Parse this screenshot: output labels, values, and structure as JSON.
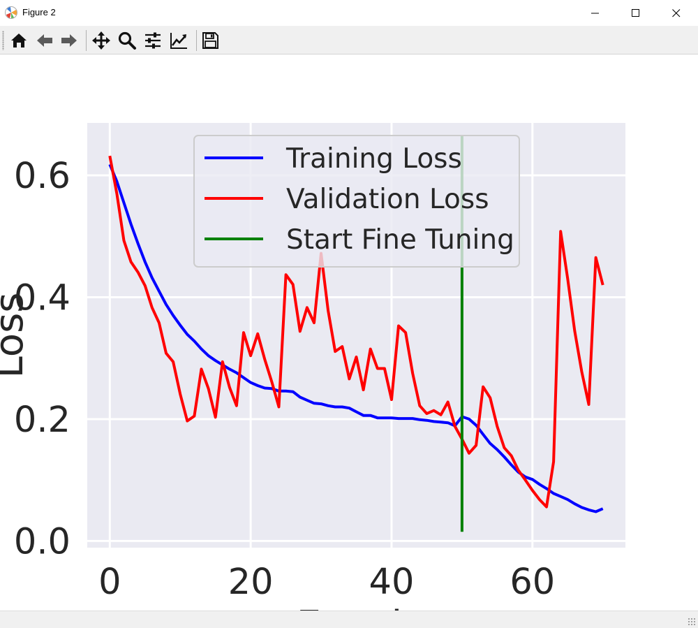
{
  "window": {
    "title": "Figure 2",
    "icons": [
      "app-icon",
      "minimize-icon",
      "maximize-icon",
      "close-icon"
    ]
  },
  "toolbar": {
    "buttons": [
      {
        "name": "home-button",
        "icon": "home-icon"
      },
      {
        "name": "back-button",
        "icon": "arrow-left-icon"
      },
      {
        "name": "forward-button",
        "icon": "arrow-right-icon"
      },
      {
        "name": "pan-button",
        "icon": "move-icon"
      },
      {
        "name": "zoom-button",
        "icon": "magnifier-icon"
      },
      {
        "name": "subplots-button",
        "icon": "sliders-icon"
      },
      {
        "name": "edit-axes-button",
        "icon": "line-chart-icon"
      },
      {
        "name": "save-button",
        "icon": "floppy-disk-icon"
      }
    ]
  },
  "colors": {
    "plot_background": "#EAEAF2",
    "grid": "#FFFFFF",
    "training": "#0000FF",
    "validation": "#FF0000",
    "fine_tune": "#008000",
    "text": "#262626"
  },
  "chart_data": {
    "type": "line",
    "xlabel": "Epoch",
    "ylabel": "Loss",
    "xlim": [
      -3.2,
      73.2
    ],
    "ylim": [
      -0.011,
      0.686
    ],
    "xticks": [
      0,
      20,
      40,
      60
    ],
    "yticks": [
      0.0,
      0.2,
      0.4,
      0.6
    ],
    "xtick_labels": [
      "0",
      "20",
      "40",
      "60"
    ],
    "ytick_labels": [
      "0.0",
      "0.2",
      "0.4",
      "0.6"
    ],
    "grid": true,
    "legend_position": "top-center",
    "series": [
      {
        "name": "Training Loss",
        "color": "#0000FF",
        "x": [
          0,
          1,
          2,
          3,
          4,
          5,
          6,
          7,
          8,
          9,
          10,
          11,
          12,
          13,
          14,
          15,
          16,
          17,
          18,
          19,
          20,
          21,
          22,
          23,
          24,
          25,
          26,
          27,
          28,
          29,
          30,
          31,
          32,
          33,
          34,
          35,
          36,
          37,
          38,
          39,
          40,
          41,
          42,
          43,
          44,
          45,
          46,
          47,
          48,
          49,
          50,
          51,
          52,
          53,
          54,
          55,
          56,
          57,
          58,
          59,
          60,
          61,
          62,
          63,
          64,
          65,
          66,
          67,
          68,
          69,
          70
        ],
        "y": [
          0.618,
          0.59,
          0.555,
          0.52,
          0.488,
          0.458,
          0.432,
          0.41,
          0.388,
          0.37,
          0.354,
          0.339,
          0.328,
          0.315,
          0.304,
          0.296,
          0.289,
          0.282,
          0.276,
          0.268,
          0.26,
          0.255,
          0.251,
          0.25,
          0.246,
          0.246,
          0.245,
          0.236,
          0.231,
          0.226,
          0.225,
          0.222,
          0.22,
          0.22,
          0.218,
          0.212,
          0.206,
          0.206,
          0.202,
          0.202,
          0.202,
          0.201,
          0.201,
          0.201,
          0.199,
          0.198,
          0.196,
          0.195,
          0.194,
          0.189,
          0.204,
          0.2,
          0.19,
          0.175,
          0.16,
          0.15,
          0.138,
          0.125,
          0.113,
          0.105,
          0.101,
          0.093,
          0.086,
          0.078,
          0.073,
          0.068,
          0.061,
          0.055,
          0.051,
          0.048,
          0.053
        ]
      },
      {
        "name": "Validation Loss",
        "color": "#FF0000",
        "x": [
          0,
          1,
          2,
          3,
          4,
          5,
          6,
          7,
          8,
          9,
          10,
          11,
          12,
          13,
          14,
          15,
          16,
          17,
          18,
          19,
          20,
          21,
          22,
          23,
          24,
          25,
          26,
          27,
          28,
          29,
          30,
          31,
          32,
          33,
          34,
          35,
          36,
          37,
          38,
          39,
          40,
          41,
          42,
          43,
          44,
          45,
          46,
          47,
          48,
          49,
          50,
          51,
          52,
          53,
          54,
          55,
          56,
          57,
          58,
          59,
          60,
          61,
          62,
          63,
          64,
          65,
          66,
          67,
          68,
          69,
          70
        ],
        "y": [
          0.632,
          0.57,
          0.493,
          0.458,
          0.441,
          0.419,
          0.383,
          0.358,
          0.308,
          0.294,
          0.241,
          0.197,
          0.205,
          0.282,
          0.25,
          0.203,
          0.294,
          0.252,
          0.222,
          0.342,
          0.304,
          0.34,
          0.298,
          0.261,
          0.22,
          0.437,
          0.421,
          0.344,
          0.383,
          0.358,
          0.472,
          0.378,
          0.311,
          0.319,
          0.266,
          0.302,
          0.248,
          0.315,
          0.283,
          0.283,
          0.232,
          0.353,
          0.342,
          0.275,
          0.222,
          0.209,
          0.214,
          0.207,
          0.228,
          0.188,
          0.167,
          0.144,
          0.157,
          0.253,
          0.235,
          0.188,
          0.153,
          0.14,
          0.116,
          0.1,
          0.083,
          0.068,
          0.056,
          0.13,
          0.508,
          0.431,
          0.345,
          0.278,
          0.224,
          0.465,
          0.42
        ]
      },
      {
        "name": "Start Fine Tuning",
        "color": "#008000",
        "x": [
          50,
          50
        ],
        "y": [
          0.015,
          0.665
        ]
      }
    ]
  }
}
